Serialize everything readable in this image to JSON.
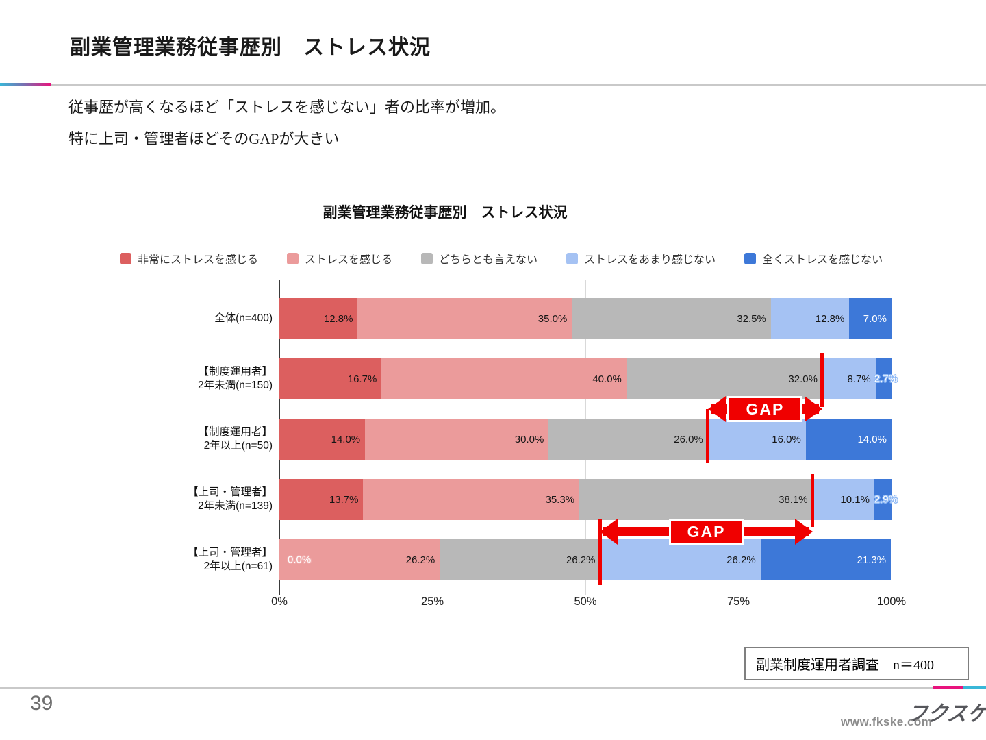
{
  "slide": {
    "title": "副業管理業務従事歴別　ストレス状況",
    "lead_lines": [
      "従事歴が高くなるほど「ストレスを感じない」者の比率が増加。",
      "特に上司・管理者ほどそのGAPが大きい"
    ],
    "source_note": "副業制度運用者調査　n＝400",
    "page_number": "39",
    "logo_text": "フクスケ",
    "logo_url": "www.fkske.com"
  },
  "theme": {
    "accent_cyan": "#39b7d8",
    "accent_magenta": "#e8137d",
    "annotation_red": "#f00000",
    "rule_gray": "#c9c9c9"
  },
  "chart_data": {
    "type": "bar",
    "stacked": true,
    "orientation": "horizontal",
    "title": "副業管理業務従事歴別　ストレス状況",
    "categories": [
      [
        "全体(n=400)"
      ],
      [
        "【制度運用者】",
        "2年未満(n=150)"
      ],
      [
        "【制度運用者】",
        "2年以上(n=50)"
      ],
      [
        "【上司・管理者】",
        "2年未満(n=139)"
      ],
      [
        "【上司・管理者】",
        "2年以上(n=61)"
      ]
    ],
    "series": [
      {
        "name": "非常にストレスを感じる",
        "color": "#dc5f5f",
        "values": [
          12.8,
          16.7,
          14.0,
          13.7,
          0.0
        ]
      },
      {
        "name": "ストレスを感じる",
        "color": "#eb9b9b",
        "values": [
          35.0,
          40.0,
          30.0,
          35.3,
          26.2
        ]
      },
      {
        "name": "どちらとも言えない",
        "color": "#b8b8b8",
        "values": [
          32.5,
          32.0,
          26.0,
          38.1,
          26.2
        ]
      },
      {
        "name": "ストレスをあまり感じない",
        "color": "#a5c2f3",
        "values": [
          12.8,
          8.7,
          16.0,
          10.1,
          26.2
        ]
      },
      {
        "name": "全くストレスを感じない",
        "color": "#3d78d8",
        "values": [
          7.0,
          2.7,
          14.0,
          2.9,
          21.3
        ]
      }
    ],
    "x_ticks": [
      "0%",
      "25%",
      "50%",
      "75%",
      "100%"
    ],
    "xlim": [
      0,
      100
    ],
    "grid": true,
    "legend_position": "top",
    "annotations": {
      "gap_label": "GAP",
      "gap_rows": [
        [
          1,
          2
        ],
        [
          3,
          4
        ]
      ]
    }
  }
}
